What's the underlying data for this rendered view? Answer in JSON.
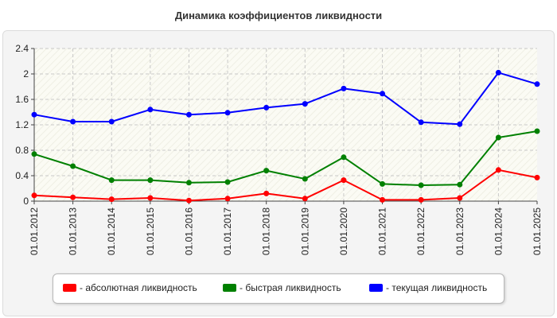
{
  "chart_data": {
    "type": "line",
    "title": "Динамика коэффициентов ликвидности",
    "xlabel": "",
    "ylabel": "",
    "categories": [
      "01.01.2012",
      "01.01.2013",
      "01.01.2014",
      "01.01.2015",
      "01.01.2016",
      "01.01.2017",
      "01.01.2018",
      "01.01.2019",
      "01.01.2020",
      "01.01.2021",
      "01.01.2022",
      "01.01.2023",
      "01.01.2024",
      "01.01.2025"
    ],
    "ylim": [
      0,
      2.4
    ],
    "yticks": [
      "0",
      "0.4",
      "0.8",
      "1.2",
      "1.6",
      "2",
      "2.4"
    ],
    "grid": true,
    "legend_position": "bottom",
    "series": [
      {
        "name": "- абсолютная ликвидность",
        "color": "#ff0000",
        "values": [
          0.09,
          0.06,
          0.03,
          0.05,
          0.01,
          0.04,
          0.12,
          0.04,
          0.33,
          0.02,
          0.02,
          0.05,
          0.49,
          0.37
        ]
      },
      {
        "name": "- быстрая ликвидность",
        "color": "#008000",
        "values": [
          0.74,
          0.55,
          0.33,
          0.33,
          0.29,
          0.3,
          0.48,
          0.35,
          0.69,
          0.27,
          0.25,
          0.26,
          1.0,
          1.1
        ]
      },
      {
        "name": "- текущая ликвидность",
        "color": "#0000ff",
        "values": [
          1.36,
          1.25,
          1.25,
          1.44,
          1.36,
          1.39,
          1.47,
          1.53,
          1.77,
          1.69,
          1.24,
          1.21,
          2.02,
          1.84
        ]
      }
    ]
  }
}
